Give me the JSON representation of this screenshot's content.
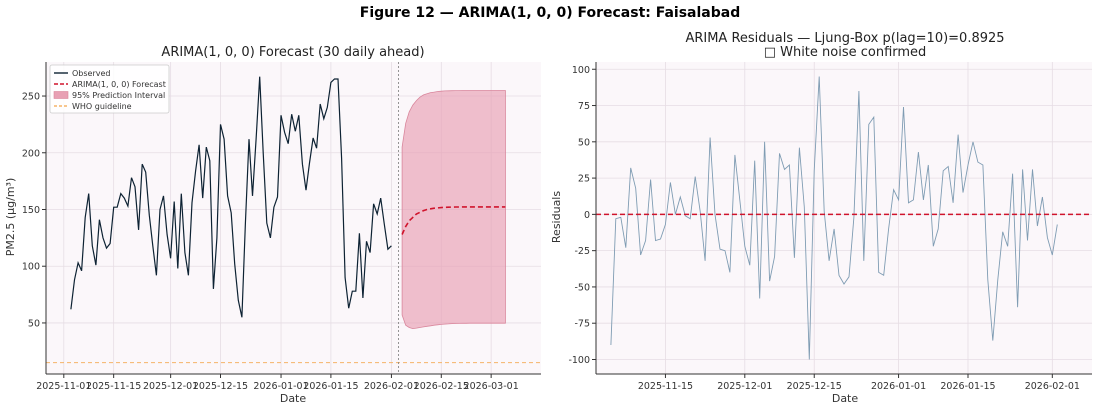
{
  "figure_title": "Figure 12 — ARIMA(1, 0, 0) Forecast: Faisalabad",
  "colors": {
    "observed": "#0d2233",
    "forecast": "#d0142c",
    "interval": "#e8a0b4",
    "who": "#f5b468",
    "residual": "#7f9cb3",
    "zero": "#d0142c",
    "plot_bg": "#fbf7fa",
    "grid": "#e6dde4"
  },
  "chart_data": [
    {
      "type": "line",
      "title": "ARIMA(1, 0, 0) Forecast (30 daily ahead)",
      "xlabel": "Date",
      "ylabel": "PM2.5 (μg/m³)",
      "xlim": [
        "2025-10-27",
        "2026-03-15"
      ],
      "ylim": [
        5,
        280
      ],
      "x_ticks": [
        "2025-11-01",
        "2025-11-15",
        "2025-12-01",
        "2025-12-15",
        "2026-01-01",
        "2026-01-15",
        "2026-02-01",
        "2026-02-15",
        "2026-03-01"
      ],
      "y_ticks": [
        50,
        100,
        150,
        200,
        250
      ],
      "grid": true,
      "legend_position": "top-left",
      "legend": [
        "Observed",
        "ARIMA(1, 0, 0) Forecast",
        "95% Prediction Interval",
        "WHO guideline"
      ],
      "who_guideline": 15,
      "forecast_origin": "2026-02-03",
      "observed": {
        "name": "Observed",
        "start_date": "2025-11-03",
        "values": [
          62,
          88,
          103,
          96,
          143,
          164,
          118,
          101,
          141,
          125,
          116,
          120,
          152,
          152,
          164,
          160,
          153,
          178,
          170,
          132,
          190,
          183,
          145,
          118,
          92,
          150,
          162,
          128,
          107,
          157,
          98,
          164,
          112,
          92,
          156,
          184,
          207,
          160,
          205,
          193,
          80,
          125,
          225,
          212,
          162,
          147,
          102,
          70,
          55,
          138,
          212,
          162,
          212,
          267,
          200,
          138,
          125,
          152,
          161,
          233,
          218,
          208,
          234,
          219,
          233,
          190,
          167,
          191,
          213,
          204,
          243,
          230,
          240,
          262,
          265,
          265,
          195,
          90,
          63,
          78,
          78,
          129,
          72,
          122,
          112,
          155,
          146,
          160,
          137,
          115,
          118
        ]
      },
      "forecast": {
        "name": "ARIMA(1, 0, 0) Forecast",
        "start_date": "2026-02-04",
        "values": [
          128,
          135,
          140,
          143,
          146,
          147.5,
          149,
          150,
          150.6,
          151.1,
          151.4,
          151.7,
          151.9,
          152,
          152.1,
          152.2,
          152.2,
          152.3,
          152.3,
          152.3,
          152.3,
          152.3,
          152.3,
          152.3,
          152.3,
          152.3,
          152.3,
          152.3,
          152.3,
          152.3
        ]
      },
      "interval": {
        "name": "95% Prediction Interval",
        "upper": [
          205,
          226,
          236,
          242,
          246,
          249,
          251,
          252,
          253,
          253.5,
          254,
          254.3,
          254.5,
          254.6,
          254.7,
          254.8,
          254.8,
          254.9,
          254.9,
          254.9,
          254.9,
          254.9,
          254.9,
          254.9,
          254.9,
          254.9,
          254.9,
          254.9,
          254.9,
          254.9
        ],
        "lower": [
          57,
          48,
          46,
          45,
          45.5,
          46,
          46.5,
          47,
          47.5,
          48,
          48.4,
          48.7,
          49,
          49.2,
          49.4,
          49.5,
          49.6,
          49.7,
          49.7,
          49.8,
          49.8,
          49.8,
          49.8,
          49.8,
          49.8,
          49.8,
          49.8,
          49.8,
          49.8,
          49.8
        ]
      }
    },
    {
      "type": "line",
      "title": "ARIMA Residuals — Ljung-Box p(lag=10)=0.8925",
      "subtitle": "□ White noise confirmed",
      "xlabel": "Date",
      "ylabel": "Residuals",
      "xlim": [
        "2025-11-01",
        "2026-02-09"
      ],
      "ylim": [
        -110,
        105
      ],
      "x_ticks": [
        "2025-11-15",
        "2025-12-01",
        "2025-12-15",
        "2026-01-01",
        "2026-01-15",
        "2026-02-01"
      ],
      "y_ticks": [
        -100,
        -75,
        -50,
        -25,
        0,
        25,
        50,
        75,
        100
      ],
      "grid": true,
      "residuals": {
        "start_date": "2025-11-04",
        "values": [
          -90,
          -3,
          -2,
          -23,
          32,
          18,
          -28,
          -18,
          24,
          -18,
          -17,
          -7,
          22,
          0,
          12,
          -1,
          -3,
          26,
          2,
          -32,
          53,
          0,
          -24,
          -25,
          -40,
          41,
          10,
          -22,
          -35,
          37,
          -58,
          50,
          -46,
          -29,
          42,
          31,
          34,
          -30,
          46,
          5,
          -100,
          30,
          95,
          2,
          -32,
          -10,
          -42,
          -48,
          -43,
          -2,
          85,
          -32,
          62,
          67,
          -40,
          -42,
          -10,
          17,
          10,
          74,
          8,
          10,
          43,
          10,
          34,
          -22,
          -10,
          30,
          33,
          8,
          55,
          15,
          34,
          50,
          36,
          34,
          -45,
          -87,
          -45,
          -12,
          -22,
          28,
          -64,
          31,
          -18,
          31,
          -8,
          12,
          -16,
          -28,
          -7
        ]
      }
    }
  ]
}
